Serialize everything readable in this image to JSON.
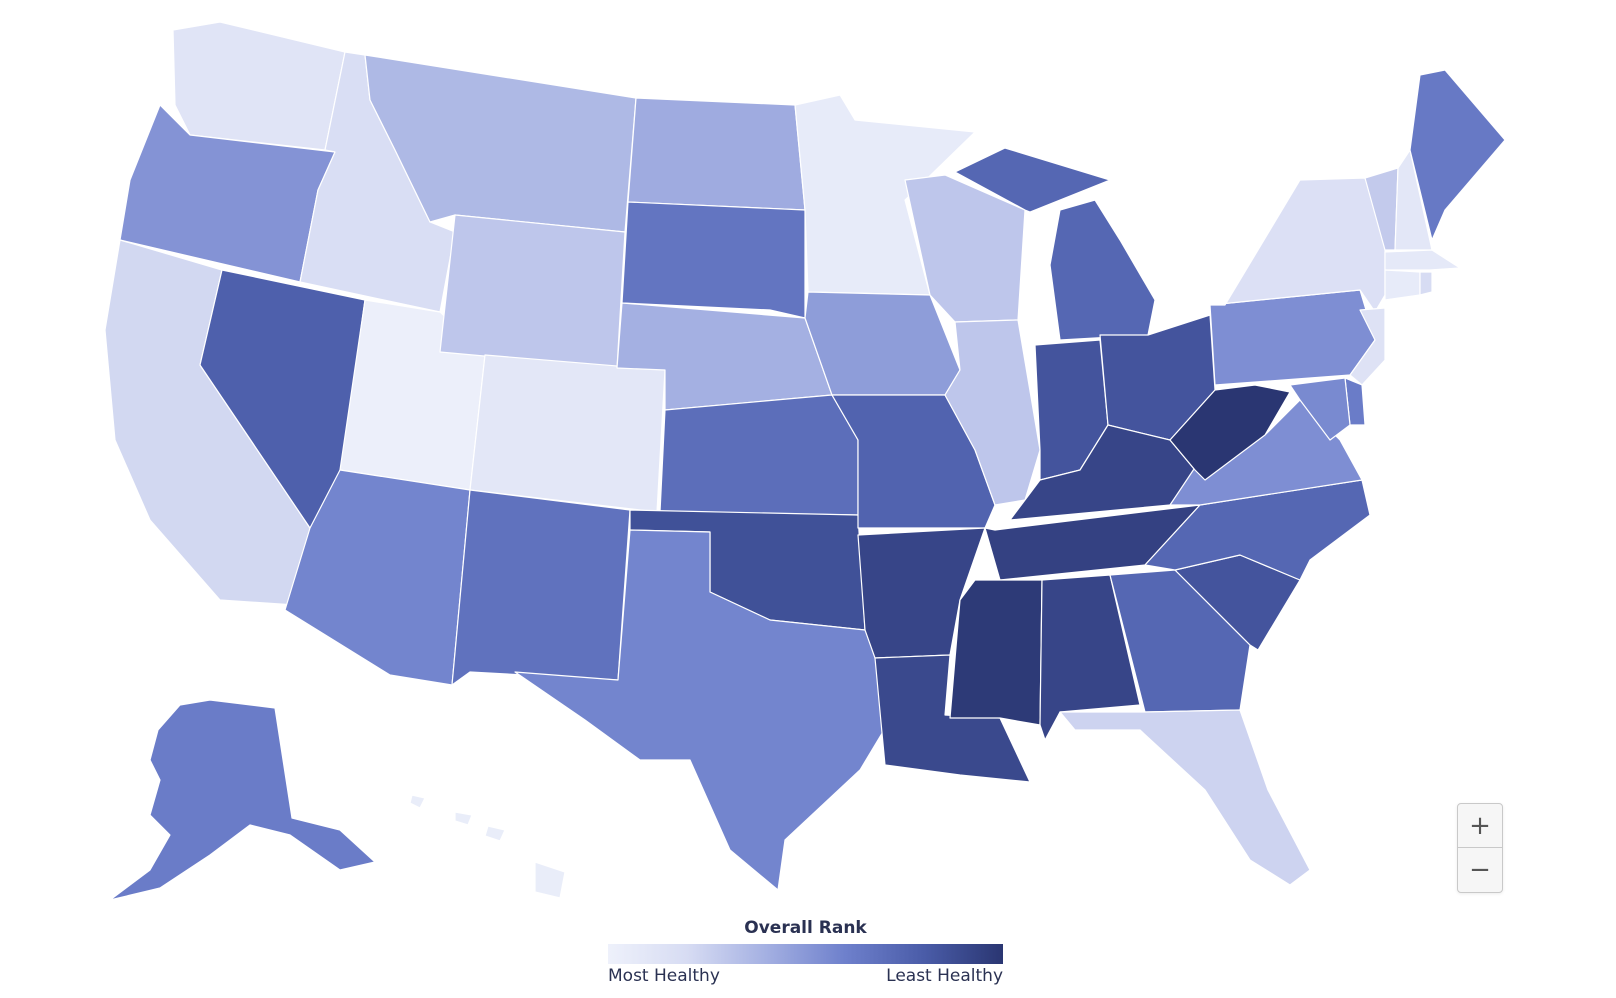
{
  "map": {
    "color_scale": [
      "#eef1fb",
      "#d7dcf3",
      "#a4b0e2",
      "#6e80cc",
      "#4a5ca8",
      "#2a3672"
    ],
    "states": [
      {
        "code": "WA",
        "level": 0.12
      },
      {
        "code": "OR",
        "level": 0.52
      },
      {
        "code": "CA",
        "level": 0.22
      },
      {
        "code": "ID",
        "level": 0.18
      },
      {
        "code": "NV",
        "level": 0.78
      },
      {
        "code": "UT",
        "level": 0.02
      },
      {
        "code": "AZ",
        "level": 0.58
      },
      {
        "code": "MT",
        "level": 0.36
      },
      {
        "code": "WY",
        "level": 0.3
      },
      {
        "code": "CO",
        "level": 0.1
      },
      {
        "code": "NM",
        "level": 0.68
      },
      {
        "code": "ND",
        "level": 0.42
      },
      {
        "code": "SD",
        "level": 0.66
      },
      {
        "code": "NE",
        "level": 0.4
      },
      {
        "code": "KS",
        "level": 0.7
      },
      {
        "code": "OK",
        "level": 0.86
      },
      {
        "code": "TX",
        "level": 0.58
      },
      {
        "code": "MN",
        "level": 0.06
      },
      {
        "code": "IA",
        "level": 0.48
      },
      {
        "code": "MO",
        "level": 0.76
      },
      {
        "code": "AR",
        "level": 0.92
      },
      {
        "code": "LA",
        "level": 0.9
      },
      {
        "code": "WI",
        "level": 0.3
      },
      {
        "code": "IL",
        "level": 0.3
      },
      {
        "code": "MI",
        "level": 0.74
      },
      {
        "code": "IN",
        "level": 0.84
      },
      {
        "code": "OH",
        "level": 0.84
      },
      {
        "code": "KY",
        "level": 0.92
      },
      {
        "code": "TN",
        "level": 0.94
      },
      {
        "code": "MS",
        "level": 0.98
      },
      {
        "code": "AL",
        "level": 0.92
      },
      {
        "code": "GA",
        "level": 0.74
      },
      {
        "code": "FL",
        "level": 0.24
      },
      {
        "code": "SC",
        "level": 0.84
      },
      {
        "code": "NC",
        "level": 0.74
      },
      {
        "code": "VA",
        "level": 0.54
      },
      {
        "code": "WV",
        "level": 1.0
      },
      {
        "code": "PA",
        "level": 0.54
      },
      {
        "code": "NY",
        "level": 0.16
      },
      {
        "code": "VT",
        "level": 0.28
      },
      {
        "code": "NH",
        "level": 0.1
      },
      {
        "code": "ME",
        "level": 0.64
      },
      {
        "code": "MA",
        "level": 0.08
      },
      {
        "code": "CT",
        "level": 0.06
      },
      {
        "code": "RI",
        "level": 0.2
      },
      {
        "code": "NJ",
        "level": 0.14
      },
      {
        "code": "DE",
        "level": 0.62
      },
      {
        "code": "MD",
        "level": 0.56
      },
      {
        "code": "AK",
        "level": 0.62
      },
      {
        "code": "HI",
        "level": 0.04
      }
    ]
  },
  "zoom": {
    "in_label": "+",
    "out_label": "−"
  },
  "legend": {
    "title": "Overall Rank",
    "low_label": "Most Healthy",
    "high_label": "Least Healthy"
  }
}
